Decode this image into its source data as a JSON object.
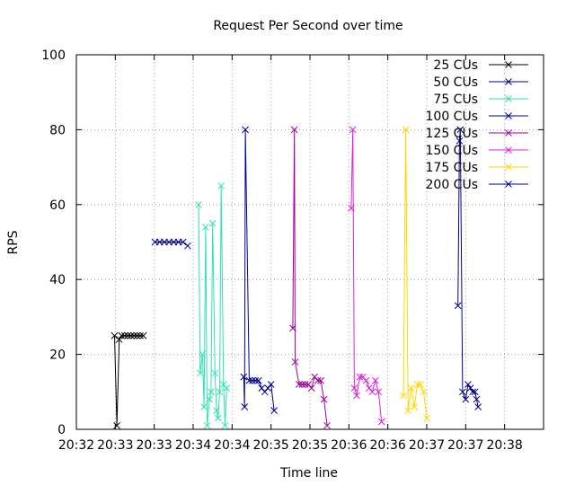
{
  "chart_data": {
    "type": "line",
    "title": "Request Per Second over time",
    "xlabel": "Time line",
    "ylabel": "RPS",
    "xlim": [
      0,
      6
    ],
    "ylim": [
      0,
      100
    ],
    "x_unit_note": "",
    "xticks": [
      {
        "v": 0,
        "label": "20:32"
      },
      {
        "v": 0.5,
        "label": "20:33"
      },
      {
        "v": 1,
        "label": "20:33"
      },
      {
        "v": 1.5,
        "label": "20:34"
      },
      {
        "v": 2,
        "label": "20:34"
      },
      {
        "v": 2.5,
        "label": "20:35"
      },
      {
        "v": 3,
        "label": "20:35"
      },
      {
        "v": 3.5,
        "label": "20:36"
      },
      {
        "v": 4,
        "label": "20:36"
      },
      {
        "v": 4.5,
        "label": "20:37"
      },
      {
        "v": 5,
        "label": "20:37"
      },
      {
        "v": 5.5,
        "label": "20:38"
      }
    ],
    "yticks": [
      0,
      20,
      40,
      60,
      80,
      100
    ],
    "grid": true,
    "legend_position": "top-right",
    "series": [
      {
        "name": "25 CUs",
        "color": "#000000",
        "x": [
          0.49,
          0.52,
          0.55,
          0.58,
          0.62,
          0.66,
          0.7,
          0.74,
          0.78,
          0.82,
          0.86
        ],
        "y": [
          25,
          1,
          24,
          25,
          25,
          25,
          25,
          25,
          25,
          25,
          25
        ]
      },
      {
        "name": "50 CUs",
        "color": "#00008b",
        "x": [
          1.01,
          1.07,
          1.13,
          1.19,
          1.25,
          1.31,
          1.37,
          1.43
        ],
        "y": [
          50,
          50,
          50,
          50,
          50,
          50,
          50,
          49
        ]
      },
      {
        "name": "75 CUs",
        "color": "#2de3b0",
        "x": [
          1.57,
          1.59,
          1.62,
          1.64,
          1.66,
          1.68,
          1.71,
          1.73,
          1.75,
          1.78,
          1.8,
          1.82,
          1.84,
          1.86,
          1.89,
          1.91,
          1.93
        ],
        "y": [
          60,
          15,
          20,
          6,
          54,
          1,
          8,
          10,
          55,
          15,
          5,
          3,
          10,
          65,
          12,
          1,
          11
        ]
      },
      {
        "name": "100 CUs",
        "color": "#00008b",
        "x": [
          2.15,
          2.16,
          2.17,
          2.22,
          2.26,
          2.3,
          2.34,
          2.38,
          2.42,
          2.46,
          2.5,
          2.54
        ],
        "y": [
          14,
          6,
          80,
          13,
          13,
          13,
          13,
          11,
          10,
          11,
          12,
          5
        ]
      },
      {
        "name": "125 CUs",
        "color": "#a000a0",
        "x": [
          2.78,
          2.8,
          2.81,
          2.86,
          2.9,
          2.94,
          2.98,
          3.02,
          3.06,
          3.1,
          3.14,
          3.18,
          3.22
        ],
        "y": [
          27,
          80,
          18,
          12,
          12,
          12,
          12,
          11,
          14,
          13,
          13,
          8,
          1
        ]
      },
      {
        "name": "150 CUs",
        "color": "#e020e0",
        "x": [
          3.53,
          3.55,
          3.57,
          3.6,
          3.64,
          3.68,
          3.72,
          3.76,
          3.8,
          3.84,
          3.88,
          3.92
        ],
        "y": [
          59,
          80,
          11,
          9,
          14,
          14,
          13,
          11,
          10,
          13,
          10,
          2
        ]
      },
      {
        "name": "175 CUs",
        "color": "#ffd700",
        "x": [
          4.2,
          4.23,
          4.26,
          4.3,
          4.34,
          4.38,
          4.42,
          4.46,
          4.5
        ],
        "y": [
          9,
          80,
          5,
          11,
          6,
          12,
          12,
          10,
          3
        ]
      },
      {
        "name": "200 CUs",
        "color": "#00008b",
        "x": [
          4.9,
          4.92,
          4.93,
          4.96,
          5.0,
          5.03,
          5.06,
          5.09,
          5.12,
          5.14,
          5.16
        ],
        "y": [
          33,
          77,
          80,
          10,
          8,
          12,
          11,
          10,
          10,
          8,
          6
        ]
      }
    ]
  }
}
